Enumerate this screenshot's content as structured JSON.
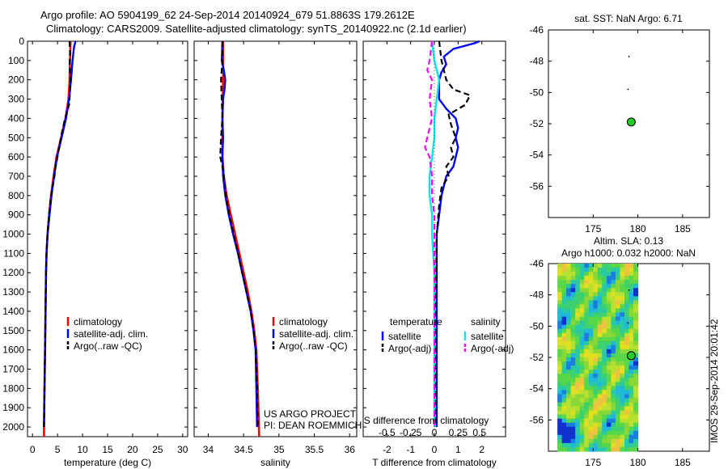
{
  "header": {
    "line1": "Argo profile: AO 5904199_62 24-Sep-2014 20140924_679 51.8863S 179.2612E",
    "line2": "Climatology: CARS2009. Satellite-adjusted climatology: synTS_20140922.nc (2.1d earlier)"
  },
  "footer": {
    "project": "US ARGO PROJECT",
    "pi": "PI: DEAN ROEMMICH",
    "stamp": "IMOS 29-Sep-2014 20:01:42"
  },
  "colors": {
    "clim": "#ff0000",
    "sat": "#0000ff",
    "argo": "#000000",
    "sal_sat": "#00e5e5",
    "sal_argo": "#ff00ff"
  },
  "chart_data": [
    {
      "id": "temp",
      "type": "line",
      "xlabel": "temperature (deg C)",
      "ylabel": "",
      "xlim": [
        -1,
        31
      ],
      "ylim": [
        2050,
        0
      ],
      "xticks": [
        0,
        5,
        10,
        15,
        20,
        25,
        30
      ],
      "yticks": [
        0,
        100,
        200,
        300,
        400,
        500,
        600,
        700,
        800,
        900,
        1000,
        1100,
        1200,
        1300,
        1400,
        1500,
        1600,
        1700,
        1800,
        1900,
        2000
      ],
      "legend": [
        "climatology",
        "satellite-adj. clim.",
        "Argo(..raw -QC)"
      ],
      "series": [
        {
          "name": "climatology",
          "style": "clim",
          "points": [
            [
              7.6,
              0
            ],
            [
              7.5,
              100
            ],
            [
              7.4,
              200
            ],
            [
              7.2,
              300
            ],
            [
              6.6,
              400
            ],
            [
              5.7,
              500
            ],
            [
              4.8,
              600
            ],
            [
              4.2,
              700
            ],
            [
              3.7,
              800
            ],
            [
              3.3,
              900
            ],
            [
              3.0,
              1000
            ],
            [
              2.8,
              1100
            ],
            [
              2.7,
              1200
            ],
            [
              2.6,
              1400
            ],
            [
              2.5,
              1600
            ],
            [
              2.4,
              1800
            ],
            [
              2.3,
              2000
            ],
            [
              2.3,
              2050
            ]
          ]
        },
        {
          "name": "satellite-adj. clim.",
          "style": "sat",
          "points": [
            [
              8.6,
              0
            ],
            [
              8.3,
              30
            ],
            [
              8.0,
              100
            ],
            [
              7.7,
              200
            ],
            [
              7.3,
              300
            ],
            [
              6.7,
              400
            ],
            [
              5.8,
              500
            ],
            [
              4.9,
              600
            ],
            [
              4.3,
              700
            ],
            [
              3.8,
              800
            ],
            [
              3.4,
              900
            ],
            [
              3.0,
              1000
            ],
            [
              2.8,
              1100
            ],
            [
              2.7,
              1200
            ],
            [
              2.6,
              1400
            ],
            [
              2.5,
              1600
            ],
            [
              2.4,
              1800
            ],
            [
              2.3,
              2000
            ]
          ]
        },
        {
          "name": "Argo(..raw -QC)",
          "style": "argo",
          "points": [
            [
              7.4,
              0
            ],
            [
              7.5,
              60
            ],
            [
              7.4,
              120
            ],
            [
              7.6,
              200
            ],
            [
              7.4,
              300
            ],
            [
              7.3,
              330
            ],
            [
              6.5,
              400
            ],
            [
              5.9,
              470
            ],
            [
              5.4,
              540
            ],
            [
              5.0,
              600
            ],
            [
              4.6,
              650
            ],
            [
              4.4,
              700
            ],
            [
              4.0,
              760
            ],
            [
              3.6,
              820
            ],
            [
              3.3,
              900
            ],
            [
              3.0,
              1000
            ],
            [
              2.8,
              1100
            ],
            [
              2.7,
              1200
            ],
            [
              2.6,
              1400
            ],
            [
              2.5,
              1600
            ],
            [
              2.4,
              1800
            ],
            [
              2.3,
              2000
            ]
          ]
        }
      ]
    },
    {
      "id": "sal",
      "type": "line",
      "xlabel": "salinity",
      "ylabel": "",
      "xlim": [
        33.8,
        36.1
      ],
      "ylim": [
        2050,
        0
      ],
      "xticks": [
        34,
        34.5,
        35,
        35.5,
        36
      ],
      "legend": [
        "climatology",
        "satellite-adj. clim.",
        "Argo(..raw -QC)"
      ],
      "series": [
        {
          "name": "climatology",
          "style": "clim",
          "points": [
            [
              34.21,
              0
            ],
            [
              34.21,
              200
            ],
            [
              34.2,
              400
            ],
            [
              34.2,
              600
            ],
            [
              34.22,
              700
            ],
            [
              34.26,
              800
            ],
            [
              34.32,
              900
            ],
            [
              34.38,
              1000
            ],
            [
              34.44,
              1100
            ],
            [
              34.5,
              1200
            ],
            [
              34.56,
              1300
            ],
            [
              34.61,
              1400
            ],
            [
              34.65,
              1500
            ],
            [
              34.68,
              1600
            ],
            [
              34.7,
              1800
            ],
            [
              34.72,
              2050
            ]
          ]
        },
        {
          "name": "satellite-adj. clim.",
          "style": "sat",
          "points": [
            [
              34.2,
              0
            ],
            [
              34.19,
              100
            ],
            [
              34.22,
              150
            ],
            [
              34.24,
              200
            ],
            [
              34.23,
              250
            ],
            [
              34.21,
              300
            ],
            [
              34.2,
              400
            ],
            [
              34.21,
              500
            ],
            [
              34.2,
              600
            ],
            [
              34.21,
              700
            ],
            [
              34.24,
              800
            ],
            [
              34.29,
              900
            ],
            [
              34.35,
              1000
            ],
            [
              34.42,
              1100
            ],
            [
              34.48,
              1200
            ],
            [
              34.54,
              1300
            ],
            [
              34.6,
              1400
            ],
            [
              34.64,
              1500
            ],
            [
              34.67,
              1600
            ],
            [
              34.68,
              1800
            ],
            [
              34.69,
              2000
            ]
          ]
        },
        {
          "name": "Argo(..raw -QC)",
          "style": "argo",
          "points": [
            [
              34.2,
              0
            ],
            [
              34.2,
              100
            ],
            [
              34.18,
              200
            ],
            [
              34.19,
              300
            ],
            [
              34.2,
              400
            ],
            [
              34.18,
              500
            ],
            [
              34.17,
              600
            ],
            [
              34.2,
              650
            ],
            [
              34.22,
              700
            ],
            [
              34.25,
              800
            ],
            [
              34.3,
              900
            ],
            [
              34.36,
              1000
            ],
            [
              34.42,
              1100
            ],
            [
              34.48,
              1200
            ],
            [
              34.54,
              1300
            ],
            [
              34.6,
              1400
            ],
            [
              34.64,
              1500
            ],
            [
              34.67,
              1600
            ],
            [
              34.69,
              1800
            ],
            [
              34.7,
              2000
            ]
          ]
        }
      ]
    },
    {
      "id": "diff",
      "type": "line",
      "xlabel": "T difference from climatology",
      "top_xlabel": "S difference from climatology",
      "xlim": [
        -3,
        3
      ],
      "ylim": [
        2050,
        0
      ],
      "xticks": [
        -2,
        -1,
        0,
        1,
        2
      ],
      "top_ticks": [
        {
          "v": -2,
          "label": "-0.5"
        },
        {
          "v": -1,
          "label": "-0.25"
        },
        {
          "v": 0,
          "label": "0"
        },
        {
          "v": 1,
          "label": "0.25"
        },
        {
          "v": 2,
          "label": "0.5"
        }
      ],
      "legend_temp_title": "temperature",
      "legend_sal_title": "salinity",
      "legend_temp": [
        "satellite",
        "Argo(-adj)"
      ],
      "legend_sal": [
        "satellite",
        "Argo(-adj)"
      ],
      "series": [
        {
          "name": "T satellite",
          "style": "sat",
          "points": [
            [
              1.9,
              0
            ],
            [
              1.7,
              10
            ],
            [
              0.8,
              40
            ],
            [
              0.4,
              80
            ],
            [
              0.5,
              120
            ],
            [
              0.3,
              160
            ],
            [
              0.2,
              200
            ],
            [
              0.2,
              300
            ],
            [
              0.5,
              350
            ],
            [
              0.9,
              400
            ],
            [
              1.0,
              450
            ],
            [
              0.9,
              500
            ],
            [
              1.0,
              550
            ],
            [
              0.9,
              600
            ],
            [
              0.8,
              650
            ],
            [
              0.5,
              700
            ],
            [
              0.3,
              800
            ],
            [
              0.2,
              900
            ],
            [
              0.1,
              1000
            ],
            [
              0.1,
              1200
            ],
            [
              0.1,
              1500
            ],
            [
              0.1,
              2000
            ]
          ]
        },
        {
          "name": "T Argo(-adj)",
          "style": "argo",
          "points": [
            [
              0.2,
              0
            ],
            [
              0.3,
              100
            ],
            [
              0.5,
              200
            ],
            [
              0.8,
              250
            ],
            [
              1.5,
              280
            ],
            [
              1.3,
              330
            ],
            [
              0.6,
              380
            ],
            [
              0.7,
              430
            ],
            [
              0.9,
              500
            ],
            [
              0.7,
              550
            ],
            [
              0.8,
              600
            ],
            [
              0.5,
              650
            ],
            [
              0.6,
              700
            ],
            [
              0.3,
              760
            ],
            [
              0.2,
              850
            ],
            [
              0.1,
              1000
            ],
            [
              0.05,
              1500
            ],
            [
              0.05,
              2000
            ]
          ]
        },
        {
          "name": "S satellite",
          "style": "sal_sat",
          "points": [
            [
              -0.1,
              0
            ],
            [
              0.0,
              100
            ],
            [
              0.2,
              200
            ],
            [
              0.1,
              300
            ],
            [
              0.0,
              400
            ],
            [
              0.0,
              500
            ],
            [
              -0.1,
              600
            ],
            [
              -0.2,
              700
            ],
            [
              -0.2,
              800
            ],
            [
              -0.1,
              900
            ],
            [
              -0.1,
              1000
            ],
            [
              0.0,
              1200
            ],
            [
              0.0,
              1500
            ],
            [
              0.0,
              2000
            ]
          ]
        },
        {
          "name": "S Argo(-adj)",
          "style": "sal_argo",
          "points": [
            [
              -0.1,
              0
            ],
            [
              -0.2,
              100
            ],
            [
              -0.3,
              150
            ],
            [
              -0.1,
              200
            ],
            [
              -0.2,
              300
            ],
            [
              -0.1,
              400
            ],
            [
              -0.3,
              500
            ],
            [
              -0.4,
              550
            ],
            [
              -0.2,
              600
            ],
            [
              -0.1,
              700
            ],
            [
              -0.1,
              800
            ],
            [
              0.0,
              900
            ],
            [
              0.0,
              1000
            ],
            [
              0.0,
              1500
            ],
            [
              0.0,
              2000
            ]
          ]
        },
        {
          "name": "zero",
          "style": "zero",
          "points": [
            [
              0,
              0
            ],
            [
              0,
              2050
            ]
          ]
        }
      ]
    },
    {
      "id": "map1",
      "type": "scatter",
      "title": "sat. SST: NaN Argo: 6.71",
      "xlim": [
        170,
        188
      ],
      "ylim": [
        -58,
        -46
      ],
      "xticks": [
        175,
        180,
        185
      ],
      "yticks": [
        -46,
        -48,
        -50,
        -52,
        -54,
        -56
      ],
      "points": [
        {
          "x": 179.0,
          "y": -47.7,
          "kind": "dot"
        },
        {
          "x": 178.9,
          "y": -49.8,
          "kind": "dot"
        },
        {
          "x": 179.26,
          "y": -51.89,
          "kind": "argo"
        }
      ]
    },
    {
      "id": "map2",
      "type": "heatmap",
      "title": "Altim. SLA: 0.13",
      "subtitle": "Argo h1000: 0.032 h2000: NaN",
      "xlim": [
        170,
        188
      ],
      "ylim": [
        -58,
        -46
      ],
      "xticks": [
        175,
        180,
        185
      ],
      "yticks": [
        -46,
        -48,
        -50,
        -52,
        -54,
        -56
      ],
      "data_extent": {
        "lon": [
          171,
          180
        ],
        "lat": [
          -58,
          -46
        ]
      },
      "points": [
        {
          "x": 179.0,
          "y": -47.7,
          "kind": "dot"
        },
        {
          "x": 178.9,
          "y": -49.8,
          "kind": "dot"
        },
        {
          "x": 179.26,
          "y": -51.89,
          "kind": "argo"
        }
      ]
    }
  ]
}
